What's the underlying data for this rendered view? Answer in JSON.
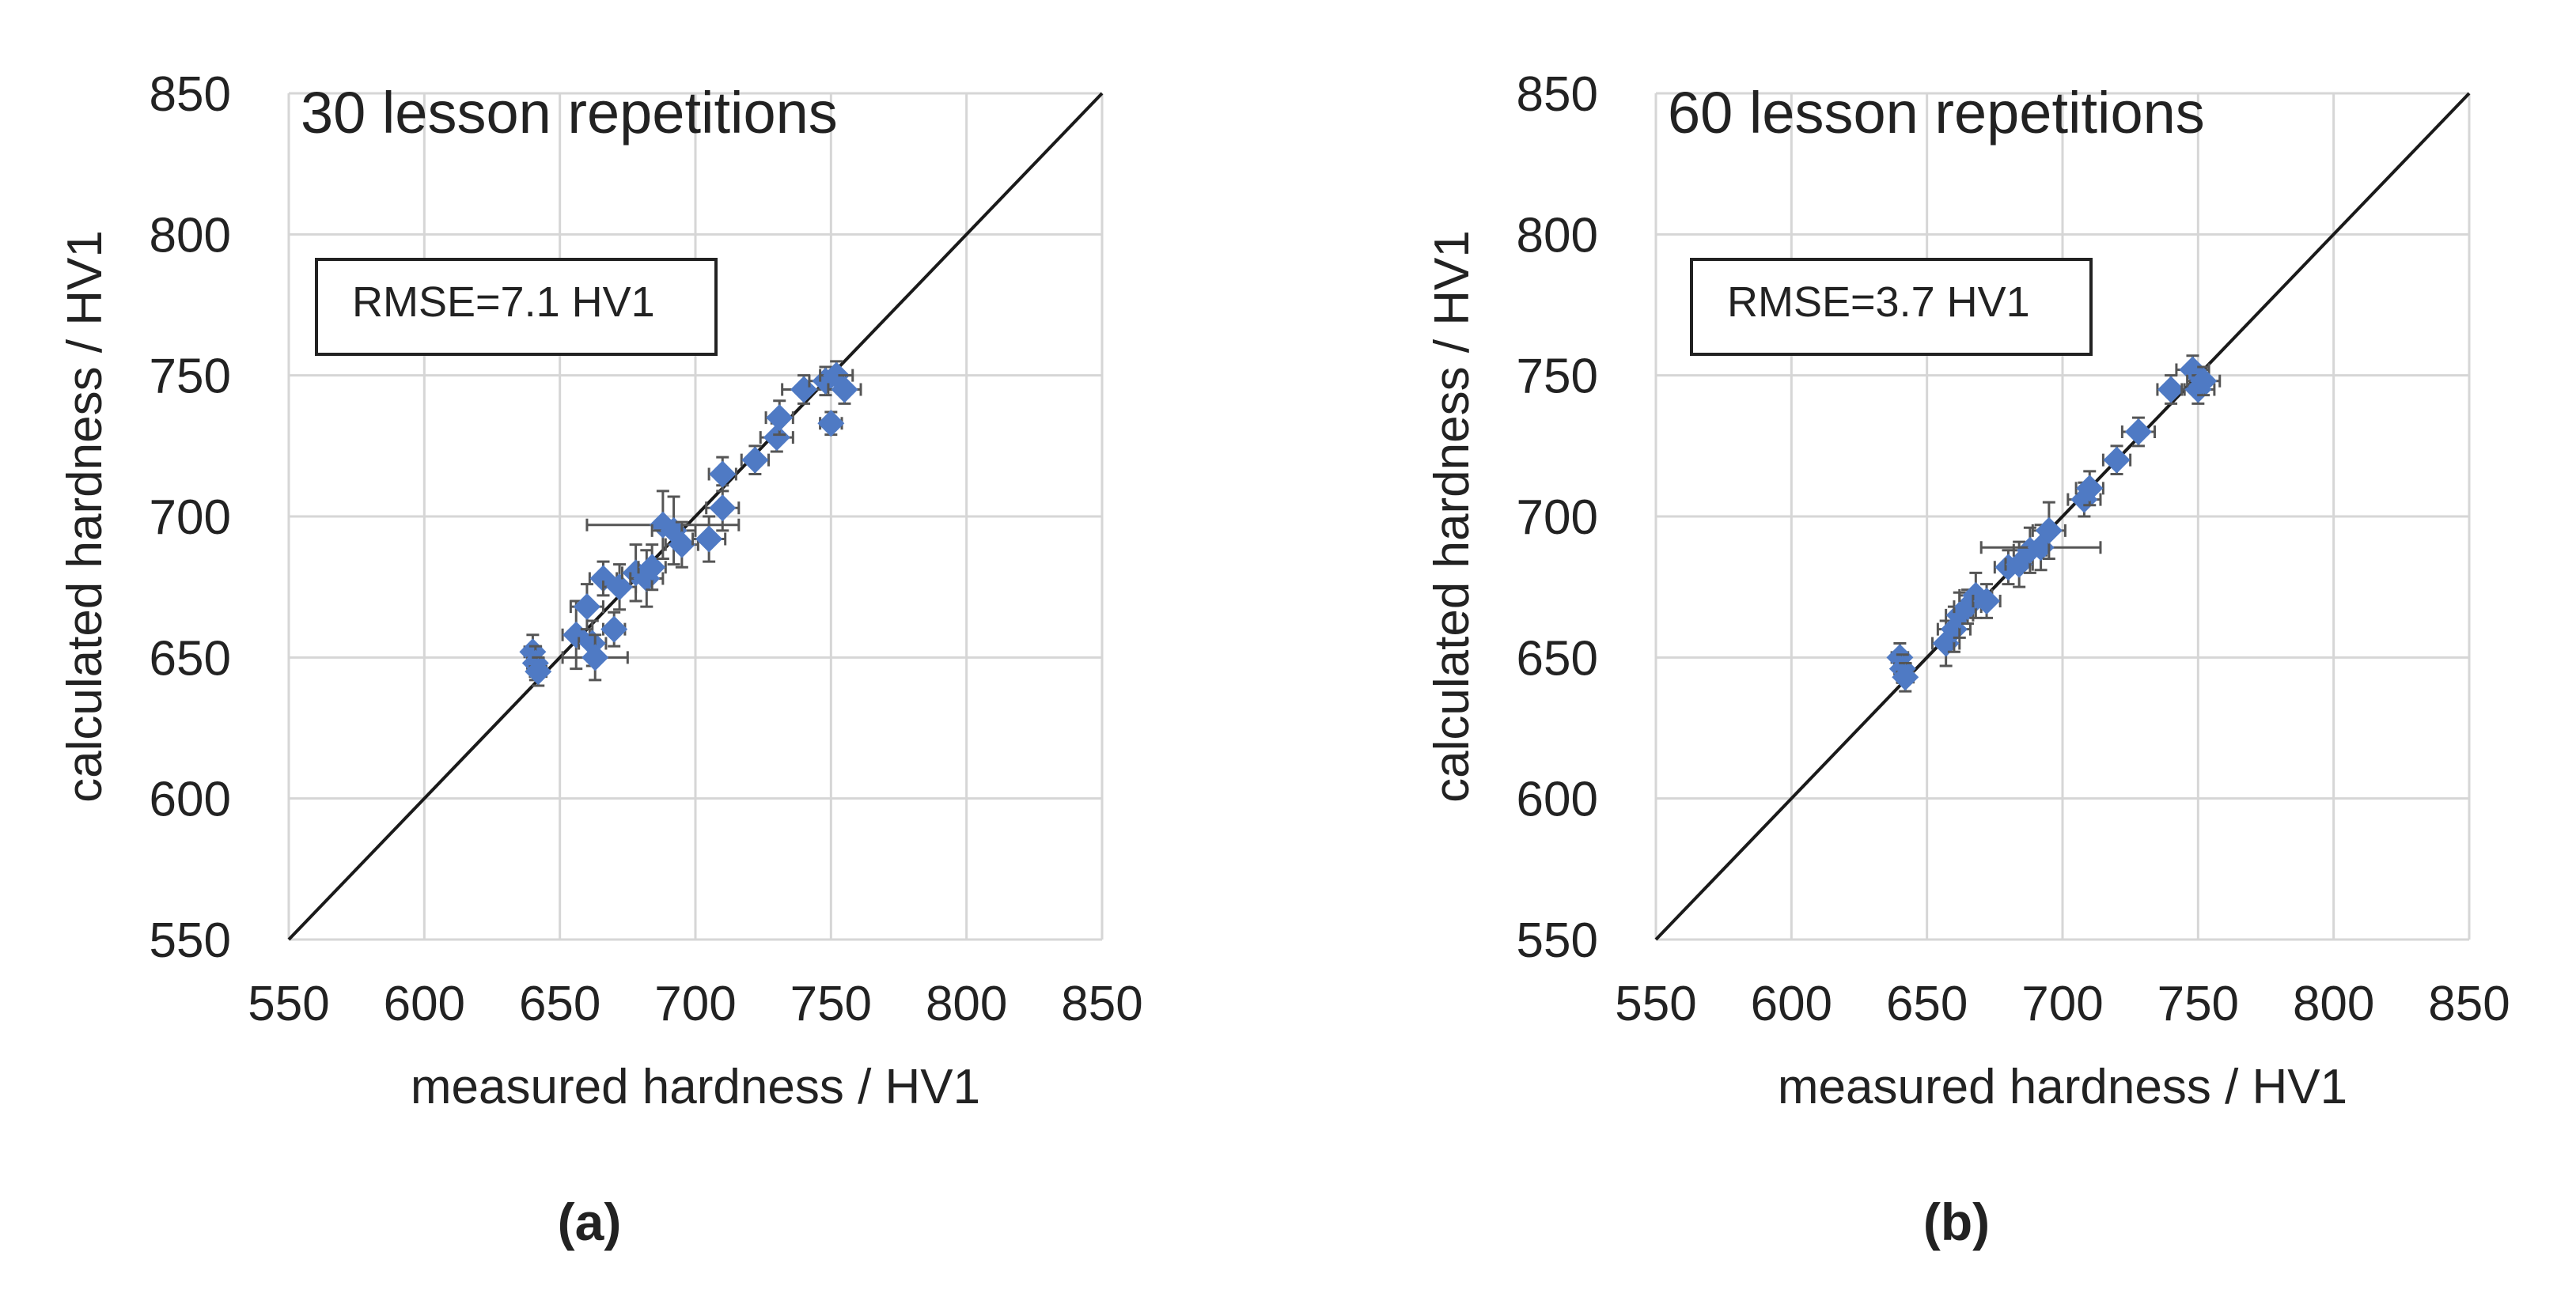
{
  "figure": {
    "colors": {
      "points": "#4f7ac4",
      "grid": "#d6d6d6",
      "line": "#1a1a1a",
      "error_bars": "#555555"
    }
  },
  "chart_data": [
    {
      "type": "scatter",
      "panel_label": "(a)",
      "title": "30 lesson repetitions",
      "annotation": "RMSE=7.1 HV1",
      "xlabel": "measured hardness / HV1",
      "ylabel": "calculated hardness / HV1",
      "xlim": [
        550,
        850
      ],
      "ylim": [
        550,
        850
      ],
      "xticks": [
        550,
        600,
        650,
        700,
        750,
        800,
        850
      ],
      "yticks": [
        550,
        600,
        650,
        700,
        750,
        800,
        850
      ],
      "reference_line": "y = x",
      "grid": true,
      "points": [
        {
          "x": 640,
          "y": 652,
          "xerr": 3,
          "yerr": 6
        },
        {
          "x": 641,
          "y": 648,
          "xerr": 3,
          "yerr": 6
        },
        {
          "x": 642,
          "y": 645,
          "xerr": 3,
          "yerr": 5
        },
        {
          "x": 656,
          "y": 658,
          "xerr": 5,
          "yerr": 12
        },
        {
          "x": 660,
          "y": 668,
          "xerr": 6,
          "yerr": 8
        },
        {
          "x": 662,
          "y": 655,
          "xerr": 5,
          "yerr": 8
        },
        {
          "x": 663,
          "y": 650,
          "xerr": 12,
          "yerr": 8
        },
        {
          "x": 666,
          "y": 678,
          "xerr": 5,
          "yerr": 6
        },
        {
          "x": 670,
          "y": 660,
          "xerr": 4,
          "yerr": 6
        },
        {
          "x": 672,
          "y": 675,
          "xerr": 6,
          "yerr": 8
        },
        {
          "x": 678,
          "y": 680,
          "xerr": 5,
          "yerr": 10
        },
        {
          "x": 682,
          "y": 678,
          "xerr": 6,
          "yerr": 10
        },
        {
          "x": 684,
          "y": 682,
          "xerr": 5,
          "yerr": 8
        },
        {
          "x": 688,
          "y": 697,
          "xerr": 28,
          "yerr": 12
        },
        {
          "x": 692,
          "y": 695,
          "xerr": 8,
          "yerr": 12
        },
        {
          "x": 695,
          "y": 690,
          "xerr": 6,
          "yerr": 8
        },
        {
          "x": 705,
          "y": 692,
          "xerr": 6,
          "yerr": 8
        },
        {
          "x": 710,
          "y": 703,
          "xerr": 6,
          "yerr": 8
        },
        {
          "x": 710,
          "y": 715,
          "xerr": 5,
          "yerr": 6
        },
        {
          "x": 722,
          "y": 720,
          "xerr": 5,
          "yerr": 5
        },
        {
          "x": 730,
          "y": 728,
          "xerr": 6,
          "yerr": 5
        },
        {
          "x": 731,
          "y": 735,
          "xerr": 5,
          "yerr": 6
        },
        {
          "x": 740,
          "y": 745,
          "xerr": 8,
          "yerr": 5
        },
        {
          "x": 748,
          "y": 748,
          "xerr": 6,
          "yerr": 5
        },
        {
          "x": 750,
          "y": 733,
          "xerr": 4,
          "yerr": 4
        },
        {
          "x": 752,
          "y": 750,
          "xerr": 6,
          "yerr": 5
        },
        {
          "x": 755,
          "y": 745,
          "xerr": 6,
          "yerr": 5
        }
      ]
    },
    {
      "type": "scatter",
      "panel_label": "(b)",
      "title": "60 lesson repetitions",
      "annotation": "RMSE=3.7 HV1",
      "xlabel": "measured hardness / HV1",
      "ylabel": "calculated hardness / HV1",
      "xlim": [
        550,
        850
      ],
      "ylim": [
        550,
        850
      ],
      "xticks": [
        550,
        600,
        650,
        700,
        750,
        800,
        850
      ],
      "yticks": [
        550,
        600,
        650,
        700,
        750,
        800,
        850
      ],
      "reference_line": "y = x",
      "grid": true,
      "points": [
        {
          "x": 640,
          "y": 650,
          "xerr": 3,
          "yerr": 5
        },
        {
          "x": 641,
          "y": 646,
          "xerr": 3,
          "yerr": 5
        },
        {
          "x": 642,
          "y": 643,
          "xerr": 3,
          "yerr": 5
        },
        {
          "x": 657,
          "y": 655,
          "xerr": 5,
          "yerr": 8
        },
        {
          "x": 660,
          "y": 660,
          "xerr": 6,
          "yerr": 8
        },
        {
          "x": 662,
          "y": 665,
          "xerr": 5,
          "yerr": 8
        },
        {
          "x": 665,
          "y": 668,
          "xerr": 5,
          "yerr": 6
        },
        {
          "x": 668,
          "y": 672,
          "xerr": 6,
          "yerr": 8
        },
        {
          "x": 672,
          "y": 670,
          "xerr": 5,
          "yerr": 6
        },
        {
          "x": 680,
          "y": 682,
          "xerr": 5,
          "yerr": 6
        },
        {
          "x": 684,
          "y": 683,
          "xerr": 5,
          "yerr": 8
        },
        {
          "x": 688,
          "y": 688,
          "xerr": 6,
          "yerr": 8
        },
        {
          "x": 692,
          "y": 689,
          "xerr": 22,
          "yerr": 8
        },
        {
          "x": 695,
          "y": 695,
          "xerr": 6,
          "yerr": 10
        },
        {
          "x": 708,
          "y": 706,
          "xerr": 6,
          "yerr": 6
        },
        {
          "x": 710,
          "y": 710,
          "xerr": 5,
          "yerr": 6
        },
        {
          "x": 720,
          "y": 720,
          "xerr": 5,
          "yerr": 5
        },
        {
          "x": 728,
          "y": 730,
          "xerr": 6,
          "yerr": 5
        },
        {
          "x": 740,
          "y": 745,
          "xerr": 5,
          "yerr": 5
        },
        {
          "x": 748,
          "y": 752,
          "xerr": 6,
          "yerr": 5
        },
        {
          "x": 750,
          "y": 745,
          "xerr": 6,
          "yerr": 5
        },
        {
          "x": 752,
          "y": 748,
          "xerr": 6,
          "yerr": 5
        }
      ]
    }
  ]
}
